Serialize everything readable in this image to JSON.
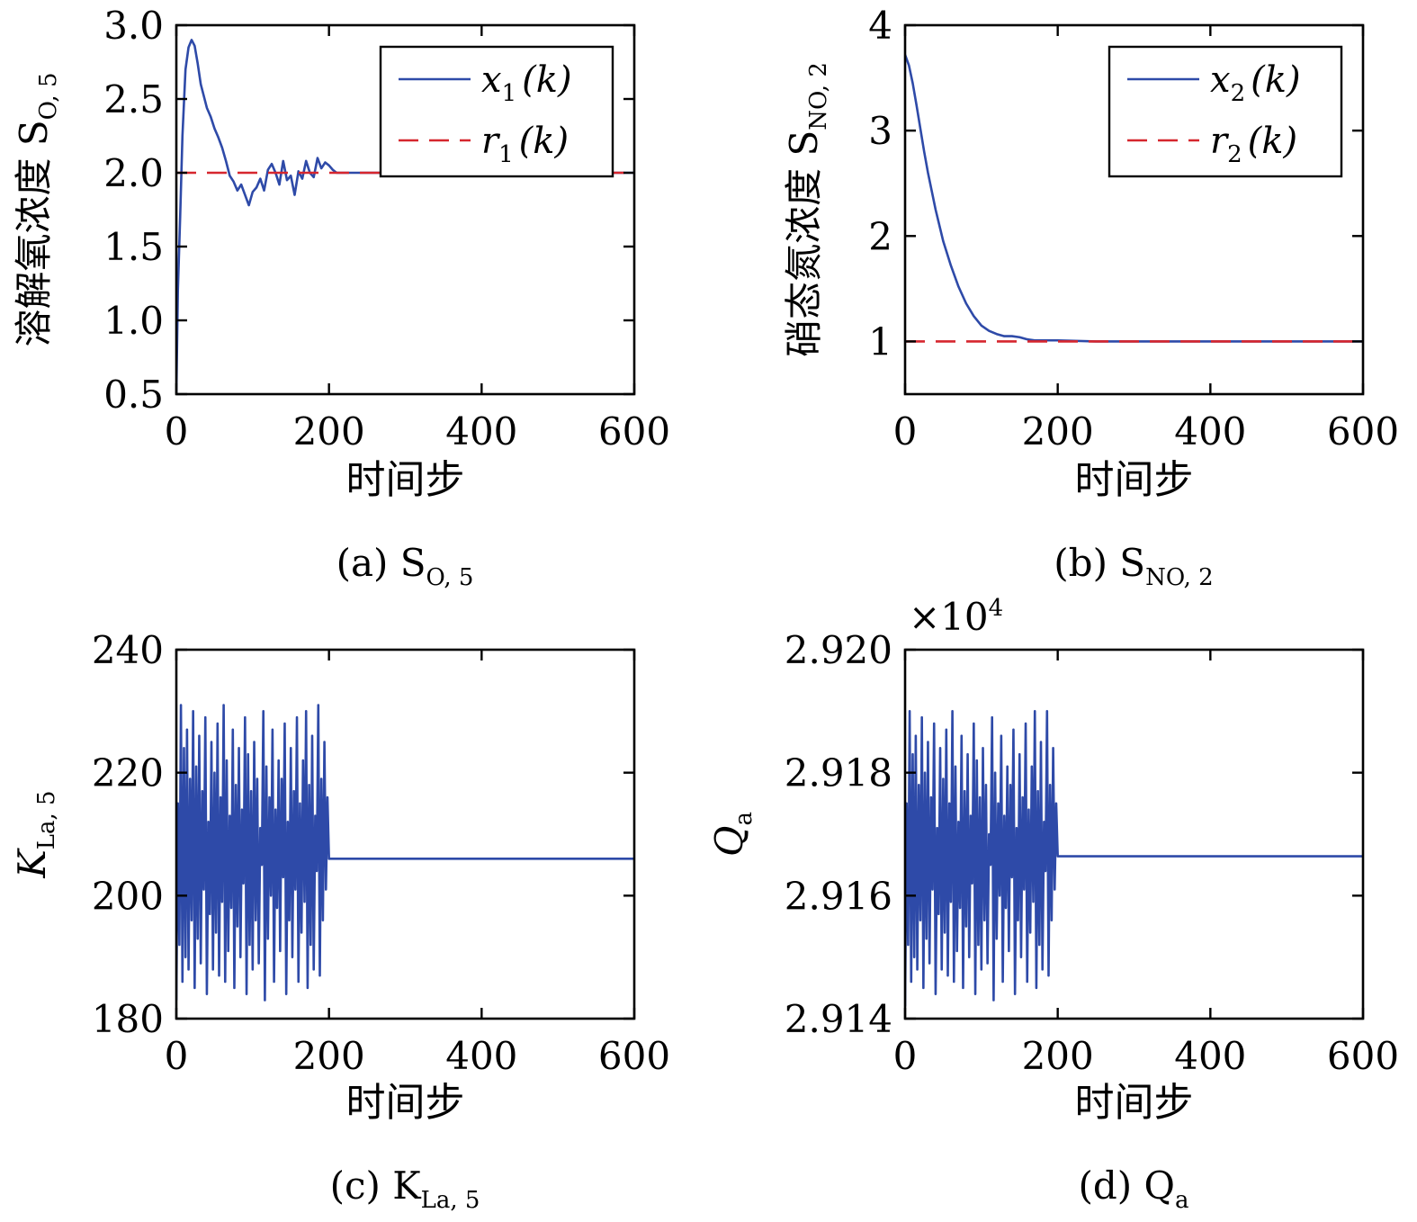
{
  "chart_data": [
    {
      "id": "a",
      "type": "line",
      "caption": "(a) S",
      "caption_sub": "O, 5",
      "xlabel": "时间步",
      "ylabel": "溶解氧浓度 S",
      "ylabel_sub": "O, 5",
      "xlim": [
        0,
        600
      ],
      "ylim": [
        0.5,
        3.0
      ],
      "xticks": [
        "0",
        "200",
        "400",
        "600"
      ],
      "yticks": [
        "0.5",
        "1.0",
        "1.5",
        "2.0",
        "2.5",
        "3.0"
      ],
      "ytick_values": [
        0.5,
        1.0,
        1.5,
        2.0,
        2.5,
        3.0
      ],
      "legend_position": "top-right",
      "series": [
        {
          "name": "x1(k)",
          "legend_main": "x",
          "legend_sub": "1",
          "legend_tail": "(k)",
          "color": "#2e4aa8",
          "dash": "solid",
          "x": [
            0,
            2,
            5,
            8,
            12,
            16,
            20,
            24,
            28,
            32,
            36,
            40,
            45,
            50,
            55,
            60,
            65,
            70,
            75,
            80,
            85,
            90,
            95,
            100,
            105,
            110,
            115,
            120,
            125,
            130,
            135,
            140,
            145,
            150,
            155,
            160,
            165,
            170,
            175,
            180,
            185,
            190,
            195,
            200,
            205,
            210,
            220,
            260,
            300,
            400,
            500,
            600
          ],
          "y": [
            0.5,
            1.2,
            1.7,
            2.25,
            2.7,
            2.85,
            2.9,
            2.86,
            2.74,
            2.6,
            2.52,
            2.44,
            2.38,
            2.3,
            2.24,
            2.17,
            2.08,
            1.98,
            1.94,
            1.88,
            1.92,
            1.85,
            1.78,
            1.87,
            1.9,
            1.96,
            1.88,
            2.02,
            2.06,
            2.0,
            1.92,
            2.08,
            1.95,
            1.98,
            1.85,
            2.01,
            1.96,
            2.08,
            2.0,
            1.97,
            2.1,
            2.03,
            2.07,
            2.05,
            2.02,
            2.0,
            2.0,
            2.0,
            2.0,
            2.0,
            2.0,
            2.0
          ]
        },
        {
          "name": "r1(k)",
          "legend_main": "r",
          "legend_sub": "1",
          "legend_tail": "(k)",
          "color": "#d6262e",
          "dash": "dashed",
          "x": [
            0,
            600
          ],
          "y": [
            2.0,
            2.0
          ]
        }
      ]
    },
    {
      "id": "b",
      "type": "line",
      "caption": "(b) S",
      "caption_sub": "NO, 2",
      "xlabel": "时间步",
      "ylabel": "硝态氮浓度 S",
      "ylabel_sub": "NO, 2",
      "xlim": [
        0,
        600
      ],
      "ylim": [
        0.5,
        4.0
      ],
      "xticks": [
        "0",
        "200",
        "400",
        "600"
      ],
      "yticks": [
        "1",
        "2",
        "3",
        "4"
      ],
      "ytick_values": [
        1,
        2,
        3,
        4
      ],
      "legend_position": "top-right",
      "series": [
        {
          "name": "x2(k)",
          "legend_main": "x",
          "legend_sub": "2",
          "legend_tail": "(k)",
          "color": "#2e4aa8",
          "dash": "solid",
          "x": [
            0,
            5,
            10,
            15,
            20,
            25,
            30,
            40,
            50,
            60,
            70,
            80,
            90,
            100,
            110,
            120,
            130,
            140,
            150,
            160,
            170,
            180,
            200,
            250,
            300,
            400,
            500,
            600
          ],
          "y": [
            3.72,
            3.62,
            3.45,
            3.24,
            3.02,
            2.8,
            2.6,
            2.25,
            1.95,
            1.72,
            1.52,
            1.36,
            1.24,
            1.15,
            1.1,
            1.07,
            1.05,
            1.05,
            1.04,
            1.02,
            1.01,
            1.01,
            1.01,
            1.0,
            1.0,
            1.0,
            1.0,
            1.0
          ]
        },
        {
          "name": "r2(k)",
          "legend_main": "r",
          "legend_sub": "2",
          "legend_tail": "(k)",
          "color": "#d6262e",
          "dash": "dashed",
          "x": [
            0,
            600
          ],
          "y": [
            1.0,
            1.0
          ]
        }
      ]
    },
    {
      "id": "c",
      "type": "line",
      "caption": "(c) K",
      "caption_sub": "La, 5",
      "xlabel": "时间步",
      "ylabel": "K",
      "ylabel_sub": "La, 5",
      "xlim": [
        0,
        600
      ],
      "ylim": [
        180,
        240
      ],
      "xticks": [
        "0",
        "200",
        "400",
        "600"
      ],
      "yticks": [
        "180",
        "200",
        "220",
        "240"
      ],
      "ytick_values": [
        180,
        200,
        220,
        240
      ],
      "series": [
        {
          "name": "KLa5",
          "color": "#2e4aa8",
          "dash": "solid",
          "x": [
            0,
            2,
            4,
            6,
            8,
            10,
            12,
            14,
            16,
            18,
            20,
            22,
            24,
            26,
            28,
            30,
            32,
            34,
            36,
            38,
            40,
            42,
            44,
            46,
            48,
            50,
            52,
            54,
            56,
            58,
            60,
            62,
            64,
            66,
            68,
            70,
            72,
            74,
            76,
            78,
            80,
            82,
            84,
            86,
            88,
            90,
            92,
            94,
            96,
            98,
            100,
            102,
            104,
            106,
            108,
            110,
            112,
            114,
            116,
            118,
            120,
            122,
            124,
            126,
            128,
            130,
            132,
            134,
            136,
            138,
            140,
            142,
            144,
            146,
            148,
            150,
            152,
            154,
            156,
            158,
            160,
            162,
            164,
            166,
            168,
            170,
            172,
            174,
            176,
            178,
            180,
            182,
            184,
            186,
            188,
            190,
            192,
            194,
            196,
            198,
            200,
            210,
            300,
            400,
            500,
            600
          ],
          "y": [
            183,
            215,
            192,
            231,
            186,
            224,
            190,
            227,
            188,
            219,
            196,
            230,
            185,
            221,
            193,
            226,
            189,
            217,
            201,
            229,
            184,
            212,
            197,
            225,
            188,
            220,
            194,
            228,
            187,
            216,
            199,
            231,
            186,
            222,
            191,
            213,
            198,
            227,
            185,
            218,
            195,
            224,
            190,
            214,
            202,
            229,
            184,
            223,
            192,
            217,
            188,
            225,
            196,
            219,
            189,
            211,
            205,
            230,
            183,
            221,
            193,
            216,
            200,
            227,
            186,
            214,
            198,
            222,
            191,
            219,
            203,
            228,
            184,
            212,
            196,
            224,
            190,
            217,
            201,
            229,
            186,
            215,
            194,
            222,
            199,
            230,
            185,
            218,
            192,
            226,
            188,
            213,
            204,
            231,
            187,
            219,
            196,
            225,
            201,
            216,
            206,
            206,
            206,
            206,
            206,
            206
          ]
        }
      ]
    },
    {
      "id": "d",
      "type": "line",
      "caption": "(d) Q",
      "caption_sub": "a",
      "xlabel": "时间步",
      "ylabel": "Q",
      "ylabel_sub": "a",
      "multiplier_label": "×10",
      "multiplier_exp": "4",
      "xlim": [
        0,
        600
      ],
      "ylim": [
        2.914,
        2.92
      ],
      "xticks": [
        "0",
        "200",
        "400",
        "600"
      ],
      "yticks": [
        "2.914",
        "2.916",
        "2.918",
        "2.920"
      ],
      "ytick_values": [
        2.914,
        2.916,
        2.918,
        2.92
      ],
      "series": [
        {
          "name": "Qa",
          "color": "#2e4aa8",
          "dash": "solid",
          "x": [
            0,
            2,
            4,
            6,
            8,
            10,
            12,
            14,
            16,
            18,
            20,
            22,
            24,
            26,
            28,
            30,
            32,
            34,
            36,
            38,
            40,
            42,
            44,
            46,
            48,
            50,
            52,
            54,
            56,
            58,
            60,
            62,
            64,
            66,
            68,
            70,
            72,
            74,
            76,
            78,
            80,
            82,
            84,
            86,
            88,
            90,
            92,
            94,
            96,
            98,
            100,
            102,
            104,
            106,
            108,
            110,
            112,
            114,
            116,
            118,
            120,
            122,
            124,
            126,
            128,
            130,
            132,
            134,
            136,
            138,
            140,
            142,
            144,
            146,
            148,
            150,
            152,
            154,
            156,
            158,
            160,
            162,
            164,
            166,
            168,
            170,
            172,
            174,
            176,
            178,
            180,
            182,
            184,
            186,
            188,
            190,
            192,
            194,
            196,
            198,
            200,
            210,
            300,
            400,
            500,
            600
          ],
          "y": [
            2.9142,
            2.9175,
            2.9152,
            2.919,
            2.9146,
            2.9183,
            2.915,
            2.9186,
            2.9148,
            2.9178,
            2.9156,
            2.9189,
            2.9145,
            2.918,
            2.9153,
            2.9185,
            2.9149,
            2.9176,
            2.9161,
            2.9188,
            2.9144,
            2.9171,
            2.9157,
            2.9184,
            2.9148,
            2.9179,
            2.9154,
            2.9187,
            2.9147,
            2.9175,
            2.9159,
            2.919,
            2.9146,
            2.9181,
            2.9151,
            2.9172,
            2.9158,
            2.9186,
            2.9145,
            2.9177,
            2.9155,
            2.9183,
            2.915,
            2.9173,
            2.9162,
            2.9188,
            2.9144,
            2.9182,
            2.9152,
            2.9176,
            2.9148,
            2.9184,
            2.9156,
            2.9178,
            2.9149,
            2.917,
            2.9165,
            2.9189,
            2.9143,
            2.918,
            2.9153,
            2.9175,
            2.916,
            2.9186,
            2.9146,
            2.9173,
            2.9158,
            2.9181,
            2.9151,
            2.9178,
            2.9163,
            2.9187,
            2.9144,
            2.9171,
            2.9156,
            2.9183,
            2.915,
            2.9176,
            2.9161,
            2.9188,
            2.9146,
            2.9174,
            2.9154,
            2.9181,
            2.9159,
            2.919,
            2.9145,
            2.9177,
            2.9152,
            2.9185,
            2.9148,
            2.9172,
            2.9164,
            2.919,
            2.9147,
            2.9178,
            2.9156,
            2.9184,
            2.9161,
            2.9175,
            2.91664,
            2.91664,
            2.91664,
            2.91664,
            2.91664,
            2.91664
          ]
        }
      ]
    }
  ]
}
